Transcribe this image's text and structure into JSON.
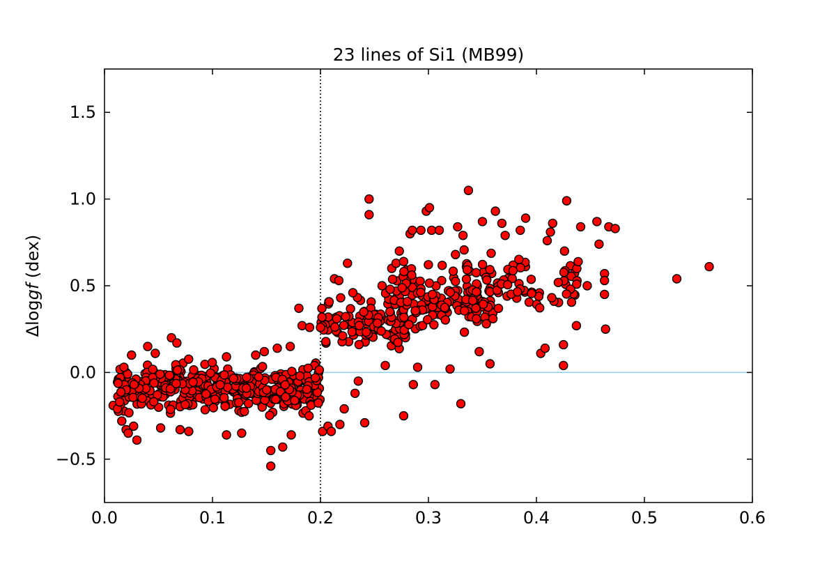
{
  "chart_data": {
    "type": "scatter",
    "title": "23 lines of Si1 (MB99)",
    "ylabel_prefix": "Δlog",
    "ylabel_italic": "gf",
    "ylabel_suffix": " (dex)",
    "xlim": [
      0.0,
      0.6
    ],
    "ylim": [
      -0.75,
      1.75
    ],
    "xticks": [
      0.0,
      0.1,
      0.2,
      0.3,
      0.4,
      0.5,
      0.6
    ],
    "xtick_labels": [
      "0.0",
      "0.1",
      "0.2",
      "0.3",
      "0.4",
      "0.5",
      "0.6"
    ],
    "yticks": [
      -0.5,
      0.0,
      0.5,
      1.0,
      1.5
    ],
    "ytick_labels": [
      "−0.5",
      "0.0",
      "0.5",
      "1.0",
      "1.5"
    ],
    "hline_y": 0.0,
    "vline_x": 0.2,
    "grid": false,
    "colors": {
      "marker_fill": "#ff0000",
      "marker_edge": "#000000",
      "hline": "#87cefa",
      "vline": "#000000"
    },
    "highlighted_points": [
      [
        0.008,
        -0.19
      ],
      [
        0.012,
        -0.21
      ],
      [
        0.014,
        -0.17
      ],
      [
        0.016,
        -0.28
      ],
      [
        0.018,
        0.03
      ],
      [
        0.02,
        -0.33
      ],
      [
        0.022,
        -0.35
      ],
      [
        0.025,
        0.1
      ],
      [
        0.027,
        -0.31
      ],
      [
        0.03,
        -0.39
      ],
      [
        0.04,
        0.15
      ],
      [
        0.047,
        0.11
      ],
      [
        0.052,
        -0.32
      ],
      [
        0.062,
        0.2
      ],
      [
        0.067,
        0.17
      ],
      [
        0.07,
        -0.33
      ],
      [
        0.078,
        -0.34
      ],
      [
        0.113,
        0.09
      ],
      [
        0.113,
        -0.36
      ],
      [
        0.127,
        -0.35
      ],
      [
        0.14,
        0.1
      ],
      [
        0.148,
        0.12
      ],
      [
        0.154,
        -0.45
      ],
      [
        0.154,
        -0.54
      ],
      [
        0.16,
        0.14
      ],
      [
        0.165,
        -0.43
      ],
      [
        0.172,
        0.15
      ],
      [
        0.173,
        -0.36
      ],
      [
        0.18,
        0.37
      ],
      [
        0.183,
        0.27
      ],
      [
        0.19,
        0.26
      ],
      [
        0.2,
        0.26
      ],
      [
        0.202,
        -0.34
      ],
      [
        0.207,
        -0.31
      ],
      [
        0.21,
        -0.34
      ],
      [
        0.213,
        0.54
      ],
      [
        0.217,
        0.53
      ],
      [
        0.218,
        -0.3
      ],
      [
        0.222,
        -0.21
      ],
      [
        0.225,
        0.63
      ],
      [
        0.23,
        0.46
      ],
      [
        0.232,
        -0.12
      ],
      [
        0.235,
        -0.05
      ],
      [
        0.241,
        -0.29
      ],
      [
        0.245,
        1.0
      ],
      [
        0.245,
        0.91
      ],
      [
        0.257,
        0.5
      ],
      [
        0.26,
        0.04
      ],
      [
        0.266,
        0.6
      ],
      [
        0.27,
        0.63
      ],
      [
        0.273,
        0.7
      ],
      [
        0.277,
        -0.25
      ],
      [
        0.277,
        0.64
      ],
      [
        0.283,
        0.8
      ],
      [
        0.285,
        0.82
      ],
      [
        0.286,
        -0.07
      ],
      [
        0.29,
        0.03
      ],
      [
        0.293,
        0.82
      ],
      [
        0.298,
        0.93
      ],
      [
        0.301,
        0.95
      ],
      [
        0.303,
        0.82
      ],
      [
        0.306,
        -0.07
      ],
      [
        0.31,
        0.82
      ],
      [
        0.32,
        0.02
      ],
      [
        0.325,
        0.68
      ],
      [
        0.327,
        0.84
      ],
      [
        0.33,
        -0.18
      ],
      [
        0.332,
        0.79
      ],
      [
        0.337,
        1.05
      ],
      [
        0.347,
        0.12
      ],
      [
        0.35,
        0.87
      ],
      [
        0.357,
        0.05
      ],
      [
        0.362,
        0.93
      ],
      [
        0.368,
        0.86
      ],
      [
        0.371,
        0.79
      ],
      [
        0.385,
        0.82
      ],
      [
        0.39,
        0.89
      ],
      [
        0.404,
        0.11
      ],
      [
        0.408,
        0.14
      ],
      [
        0.41,
        0.76
      ],
      [
        0.413,
        0.81
      ],
      [
        0.415,
        0.86
      ],
      [
        0.425,
        0.04
      ],
      [
        0.425,
        0.16
      ],
      [
        0.426,
        0.7
      ],
      [
        0.428,
        0.99
      ],
      [
        0.437,
        0.27
      ],
      [
        0.441,
        0.84
      ],
      [
        0.447,
        0.5
      ],
      [
        0.456,
        0.87
      ],
      [
        0.458,
        0.74
      ],
      [
        0.463,
        0.57
      ],
      [
        0.463,
        0.53
      ],
      [
        0.463,
        0.45
      ],
      [
        0.464,
        0.25
      ],
      [
        0.467,
        0.84
      ],
      [
        0.473,
        0.83
      ],
      [
        0.53,
        0.54
      ],
      [
        0.56,
        0.61
      ]
    ],
    "clusters": [
      {
        "n": 430,
        "x_range": [
          0.012,
          0.2
        ],
        "y_center": -0.09,
        "y_spread": 0.125,
        "y_clip": [
          -0.33,
          0.14
        ]
      },
      {
        "n": 120,
        "x_range": [
          0.2,
          0.28
        ],
        "y_center": 0.27,
        "y_spread": 0.13,
        "y_clip": [
          -0.05,
          0.55
        ]
      },
      {
        "n": 150,
        "x_range": [
          0.26,
          0.36
        ],
        "y_center": 0.42,
        "y_spread": 0.16,
        "y_clip": [
          0.0,
          0.75
        ]
      },
      {
        "n": 80,
        "x_range": [
          0.33,
          0.44
        ],
        "y_center": 0.52,
        "y_spread": 0.15,
        "y_clip": [
          0.24,
          0.8
        ]
      }
    ]
  }
}
